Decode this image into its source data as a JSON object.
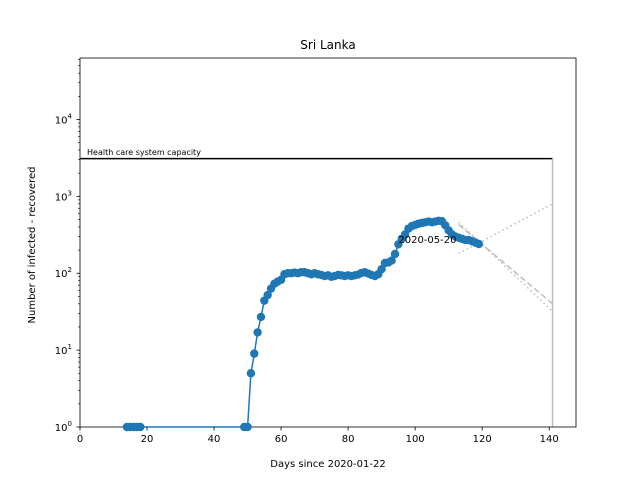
{
  "chart_data": {
    "type": "line",
    "title": "Sri Lanka",
    "xlabel": "Days since 2020-01-22",
    "ylabel": "Number of infected - recovered",
    "xlim": [
      0,
      148
    ],
    "ylim": [
      1,
      63000
    ],
    "yscale": "log",
    "grid": false,
    "x_ticks": [
      0,
      20,
      40,
      60,
      80,
      100,
      120,
      140
    ],
    "y_ticks": [
      {
        "value": 1,
        "base": "10",
        "exp": "0"
      },
      {
        "value": 10,
        "base": "10",
        "exp": "1"
      },
      {
        "value": 100,
        "base": "10",
        "exp": "2"
      },
      {
        "value": 1000,
        "base": "10",
        "exp": "3"
      },
      {
        "value": 10000,
        "base": "10",
        "exp": "4"
      }
    ],
    "capacity": {
      "label": "Health care system capacity",
      "value": 3100,
      "x_start": 0,
      "x_end": 141
    },
    "date_annotation": {
      "text": "2020-05-20",
      "x": 95,
      "y": 280
    },
    "series": [
      {
        "color": "#1f77b4",
        "x": [
          14,
          15,
          16,
          17,
          18,
          49,
          50,
          51,
          52,
          53,
          54,
          55,
          56,
          57,
          58,
          59,
          60,
          61,
          62,
          63,
          64,
          65,
          66,
          67,
          68,
          69,
          70,
          71,
          72,
          73,
          74,
          75,
          76,
          77,
          78,
          79,
          80,
          81,
          82,
          83,
          84,
          85,
          86,
          87,
          88,
          89,
          90,
          91,
          92,
          93,
          94,
          95,
          96,
          97,
          98,
          99,
          100,
          101,
          102,
          103,
          104,
          105,
          106,
          107,
          108,
          109,
          110,
          111,
          112,
          113,
          114,
          115,
          116,
          117,
          118,
          119
        ],
        "y": [
          1,
          1,
          1,
          1,
          1,
          1,
          1,
          5,
          9,
          17,
          27,
          44,
          52,
          63,
          73,
          78,
          82,
          97,
          100,
          100,
          102,
          100,
          103,
          103,
          100,
          97,
          100,
          97,
          95,
          92,
          94,
          90,
          92,
          95,
          94,
          92,
          94,
          92,
          94,
          96,
          101,
          103,
          99,
          95,
          92,
          97,
          113,
          136,
          138,
          146,
          178,
          238,
          280,
          320,
          380,
          410,
          425,
          440,
          450,
          460,
          470,
          460,
          470,
          480,
          475,
          420,
          360,
          320,
          300,
          290,
          280,
          270,
          270,
          260,
          250,
          240
        ]
      }
    ],
    "projections": [
      {
        "style": "dotted",
        "x": [
          113,
          141
        ],
        "y": [
          180,
          800
        ]
      },
      {
        "style": "dashed",
        "x": [
          113,
          141
        ],
        "y": [
          430,
          40
        ]
      },
      {
        "style": "dotted",
        "x": [
          113,
          141
        ],
        "y": [
          460,
          32
        ]
      }
    ]
  }
}
